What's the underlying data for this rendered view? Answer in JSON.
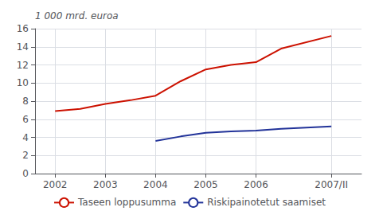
{
  "chart_data": {
    "type": "line",
    "ylabel": "1 000 mrd. euroa",
    "series": [
      {
        "name": "Taseen loppusumma",
        "color": "#cc1100",
        "x": [
          2002.0,
          2002.5,
          2003.0,
          2003.5,
          2004.0,
          2004.5,
          2005.0,
          2005.5,
          2006.0,
          2006.5,
          2007.5
        ],
        "values": [
          6.9,
          7.15,
          7.7,
          8.1,
          8.6,
          10.2,
          11.5,
          12.0,
          12.3,
          13.8,
          15.2
        ]
      },
      {
        "name": "Riskipainotetut saamiset",
        "color": "#223399",
        "x": [
          2004.0,
          2004.5,
          2005.0,
          2005.5,
          2006.0,
          2006.5,
          2007.5
        ],
        "values": [
          3.6,
          4.1,
          4.5,
          4.65,
          4.75,
          4.95,
          5.2
        ]
      }
    ],
    "xlim": [
      2001.6,
      2008.1
    ],
    "xticks": [
      2002,
      2003,
      2004,
      2005,
      2006,
      {
        "value": 2007.5,
        "label": "2007/II"
      }
    ],
    "ylim": [
      0,
      16
    ],
    "yticks": [
      0,
      2,
      4,
      6,
      8,
      10,
      12,
      14,
      16
    ],
    "grid": true,
    "legend": "bottom"
  }
}
